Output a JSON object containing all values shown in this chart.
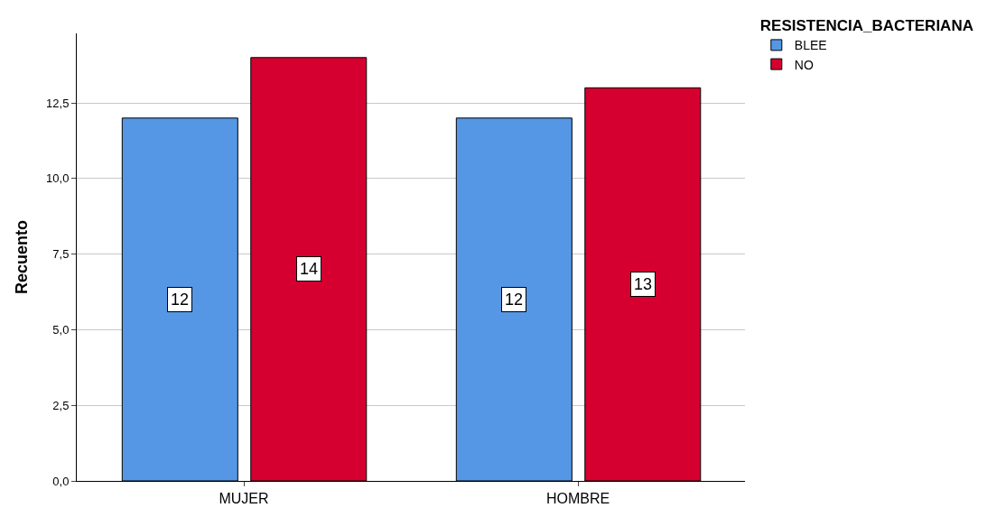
{
  "chart_data": {
    "type": "bar",
    "ylabel": "Recuento",
    "legend_title": "RESISTENCIA_BACTERIANA",
    "categories": [
      "MUJER",
      "HOMBRE"
    ],
    "series": [
      {
        "name": "BLEE",
        "color": "#5597e5",
        "values": [
          12,
          12
        ]
      },
      {
        "name": "NO",
        "color": "#d5002f",
        "values": [
          14,
          13
        ]
      }
    ],
    "ylim": [
      0,
      14.8
    ],
    "yticks": [
      {
        "value": 0,
        "label": "0,0"
      },
      {
        "value": 2.5,
        "label": "2,5"
      },
      {
        "value": 5,
        "label": "5,0"
      },
      {
        "value": 7.5,
        "label": "7,5"
      },
      {
        "value": 10,
        "label": "10,0"
      },
      {
        "value": 12.5,
        "label": "12,5"
      }
    ],
    "grid": "y",
    "legend": "top right",
    "data_labels": true
  }
}
